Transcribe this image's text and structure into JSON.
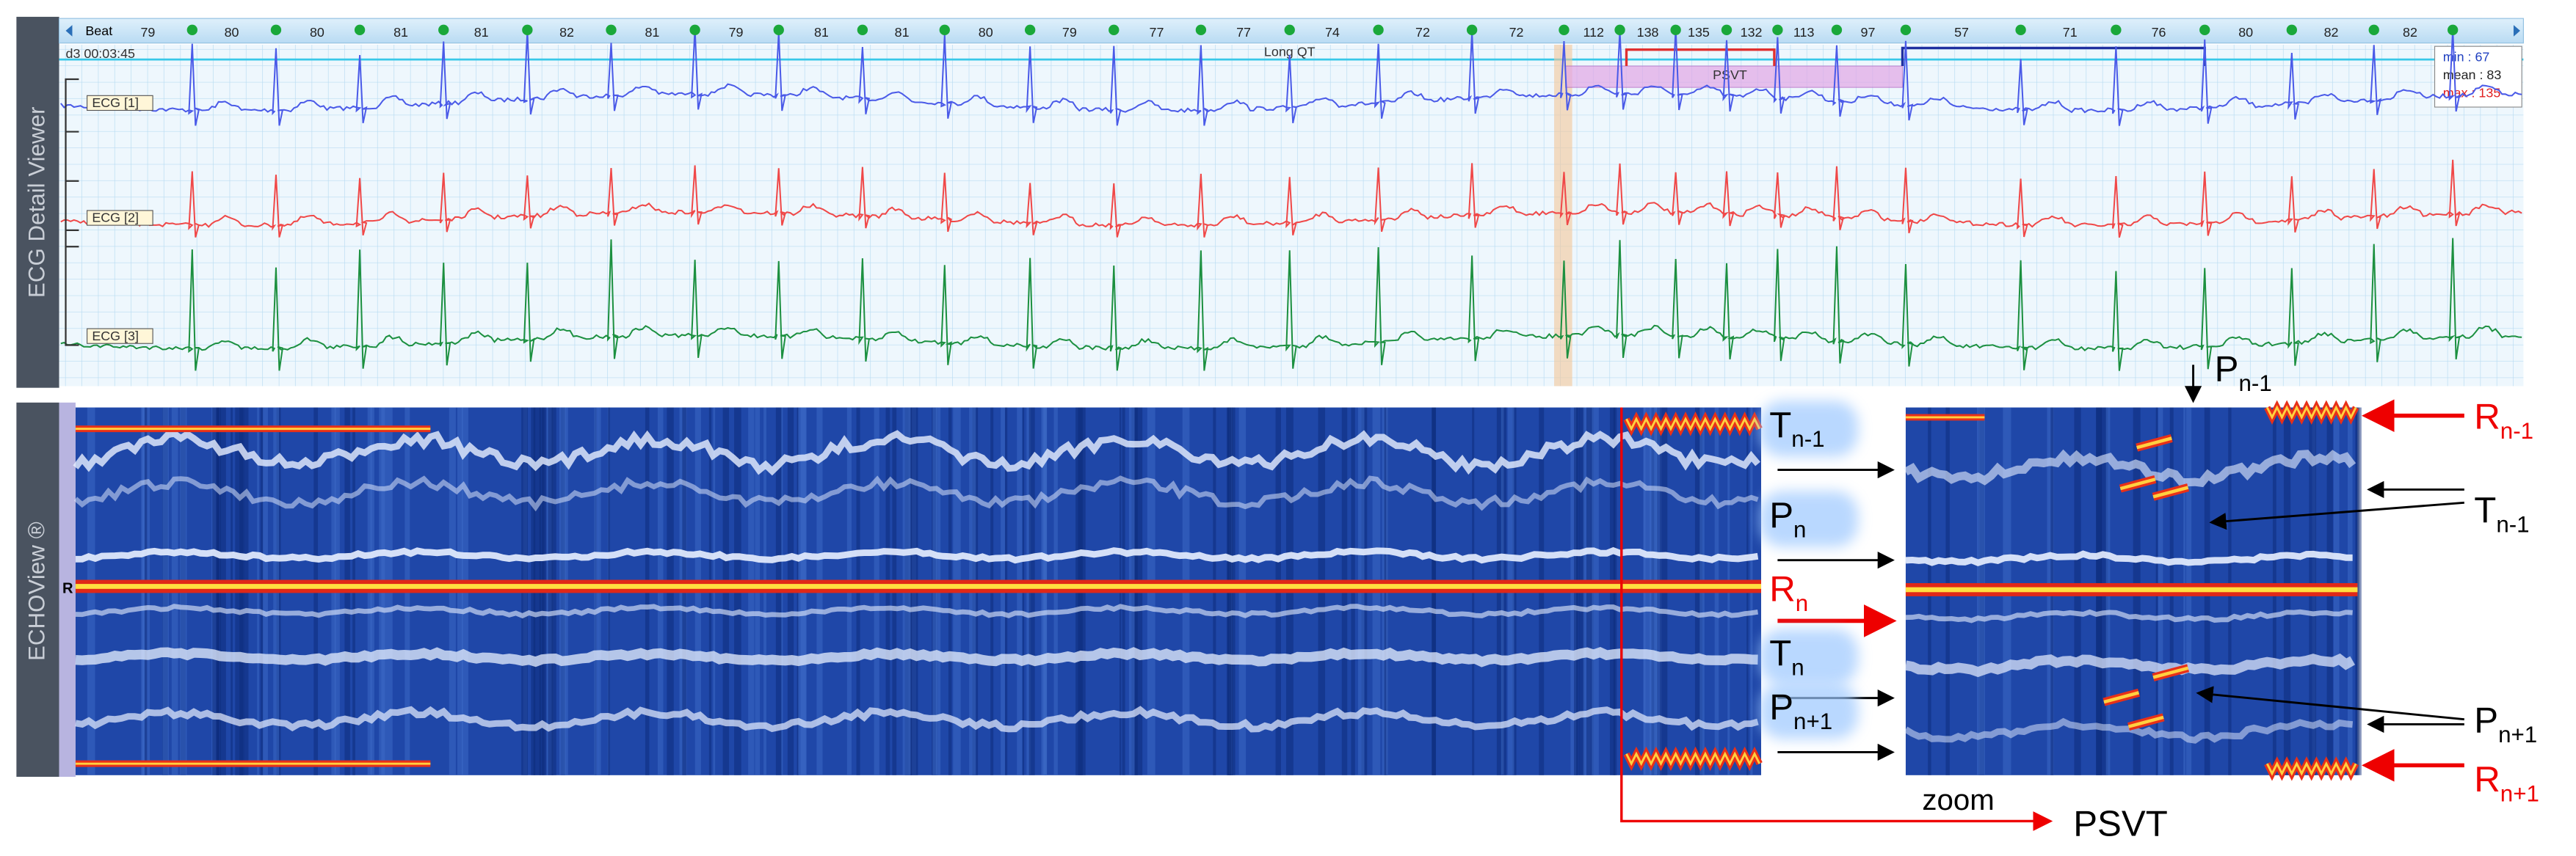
{
  "sidebar_top": "ECG Detail Viewer",
  "beat_bar": {
    "label": "Beat",
    "rates": [
      79,
      80,
      80,
      81,
      81,
      82,
      81,
      79,
      81,
      81,
      80,
      79,
      77,
      77,
      74,
      72,
      72,
      112,
      138,
      135,
      132,
      113,
      97,
      57,
      71,
      76,
      80,
      82,
      82
    ]
  },
  "time": "d3 00:03:45",
  "events": {
    "long_qt": "Long QT",
    "psvt": "PSVT"
  },
  "stats": {
    "min": "min : 67",
    "mean": "mean : 83",
    "max": "max : 135"
  },
  "leads": [
    "ECG [1]",
    "ECG [2]",
    "ECG [3]"
  ],
  "sidebar_bottom": "ECHOView ®",
  "r_marker": "R",
  "annotations_left": [
    {
      "main": "T",
      "sub": "n-1"
    },
    {
      "main": "P",
      "sub": "n"
    },
    {
      "main": "R",
      "sub": "n"
    },
    {
      "main": "T",
      "sub": "n"
    },
    {
      "main": "P",
      "sub": "n+1"
    }
  ],
  "annotations_right": [
    {
      "main": "R",
      "sub": "n-1"
    },
    {
      "main": "T",
      "sub": "n-1"
    },
    {
      "main": "P",
      "sub": "n+1"
    },
    {
      "main": "R",
      "sub": "n+1"
    }
  ],
  "annotation_top": {
    "main": "P",
    "sub": "n-1"
  },
  "zoom_label": "zoom",
  "psvt_callout": "PSVT"
}
